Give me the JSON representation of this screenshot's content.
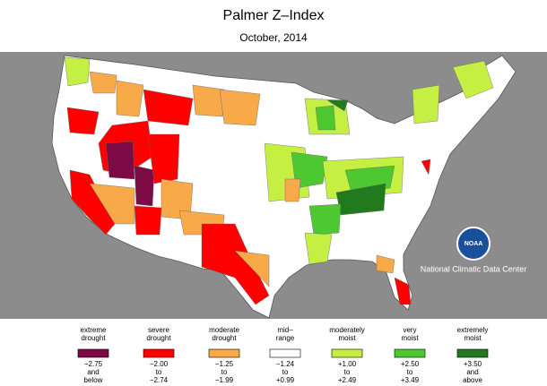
{
  "header": {
    "title": "Palmer Z–Index",
    "subtitle": "October, 2014"
  },
  "legend": {
    "items": [
      {
        "label": [
          "extreme",
          "drought"
        ],
        "range": [
          "−2.75",
          "and",
          "below"
        ],
        "color": "#7b0a45"
      },
      {
        "label": [
          "severe",
          "drought"
        ],
        "range": [
          "−2.00",
          "to",
          "−2.74"
        ],
        "color": "#ff0000"
      },
      {
        "label": [
          "moderate",
          "drought"
        ],
        "range": [
          "−1.25",
          "to",
          "−1.99"
        ],
        "color": "#f8a94a"
      },
      {
        "label": [
          "mid–",
          "range"
        ],
        "range": [
          "−1.24",
          "to",
          "+0.99"
        ],
        "color": "#ffffff"
      },
      {
        "label": [
          "moderately",
          "moist"
        ],
        "range": [
          "+1.00",
          "to",
          "+2.49"
        ],
        "color": "#c6ef44"
      },
      {
        "label": [
          "very",
          "moist"
        ],
        "range": [
          "+2.50",
          "to",
          "+3.49"
        ],
        "color": "#4dc830"
      },
      {
        "label": [
          "extremely",
          "moist"
        ],
        "range": [
          "+3.50",
          "and",
          "above"
        ],
        "color": "#237a1e"
      }
    ]
  },
  "logo": {
    "text": "NOAA",
    "caption": "National Climatic Data Center"
  }
}
